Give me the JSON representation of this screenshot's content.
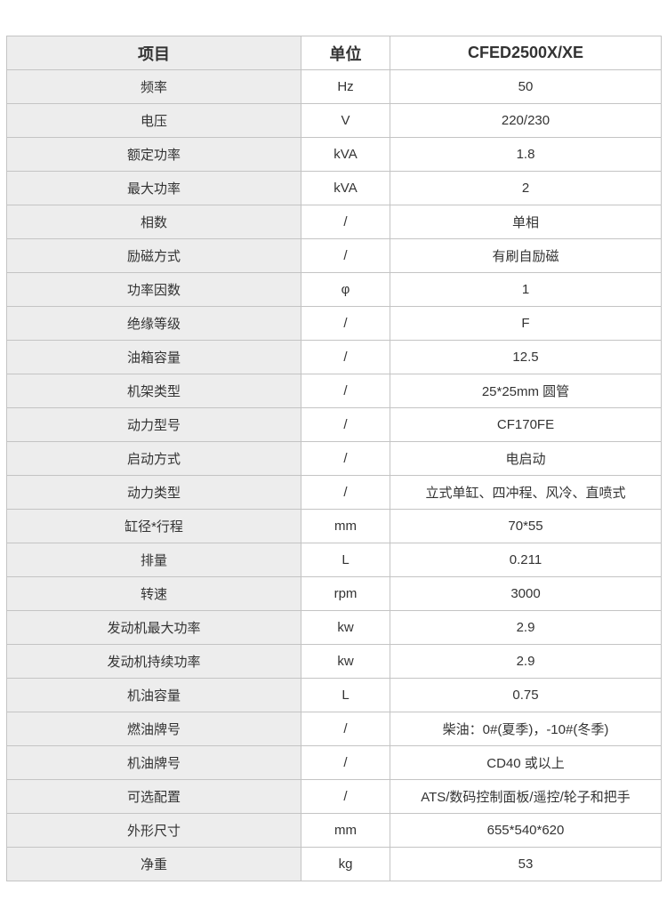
{
  "page": {
    "background": "#ffffff"
  },
  "colors": {
    "label_column_bg": "#ededed",
    "value_column_bg": "#ffffff",
    "border": "#c4c4c4",
    "text": "#333333"
  },
  "table": {
    "headers": [
      "项目",
      "单位",
      "CFED2500X/XE"
    ],
    "rows": [
      {
        "item": "频率",
        "unit": "Hz",
        "value": "50"
      },
      {
        "item": "电压",
        "unit": "V",
        "value": "220/230"
      },
      {
        "item": "额定功率",
        "unit": "kVA",
        "value": "1.8"
      },
      {
        "item": "最大功率",
        "unit": "kVA",
        "value": "2"
      },
      {
        "item": "相数",
        "unit": "/",
        "value": "单相"
      },
      {
        "item": "励磁方式",
        "unit": "/",
        "value": "有刷自励磁"
      },
      {
        "item": "功率因数",
        "unit": "φ",
        "value": "1"
      },
      {
        "item": "绝缘等级",
        "unit": "/",
        "value": "F"
      },
      {
        "item": "油箱容量",
        "unit": "/",
        "value": "12.5"
      },
      {
        "item": "机架类型",
        "unit": "/",
        "value": "25*25mm 圆管"
      },
      {
        "item": "动力型号",
        "unit": "/",
        "value": "CF170FE"
      },
      {
        "item": "启动方式",
        "unit": "/",
        "value": "电启动"
      },
      {
        "item": "动力类型",
        "unit": "/",
        "value": "立式单缸、四冲程、风冷、直喷式"
      },
      {
        "item": "缸径*行程",
        "unit": "mm",
        "value": "70*55"
      },
      {
        "item": "排量",
        "unit": "L",
        "value": "0.211"
      },
      {
        "item": "转速",
        "unit": "rpm",
        "value": "3000"
      },
      {
        "item": "发动机最大功率",
        "unit": "kw",
        "value": "2.9"
      },
      {
        "item": "发动机持续功率",
        "unit": "kw",
        "value": "2.9"
      },
      {
        "item": "机油容量",
        "unit": "L",
        "value": "0.75"
      },
      {
        "item": "燃油牌号",
        "unit": "/",
        "value": "柴油：0#(夏季)，-10#(冬季)"
      },
      {
        "item": "机油牌号",
        "unit": "/",
        "value": "CD40 或以上"
      },
      {
        "item": "可选配置",
        "unit": "/",
        "value": "ATS/数码控制面板/遥控/轮子和把手"
      },
      {
        "item": "外形尺寸",
        "unit": "mm",
        "value": "655*540*620"
      },
      {
        "item": "净重",
        "unit": "kg",
        "value": "53"
      }
    ]
  }
}
